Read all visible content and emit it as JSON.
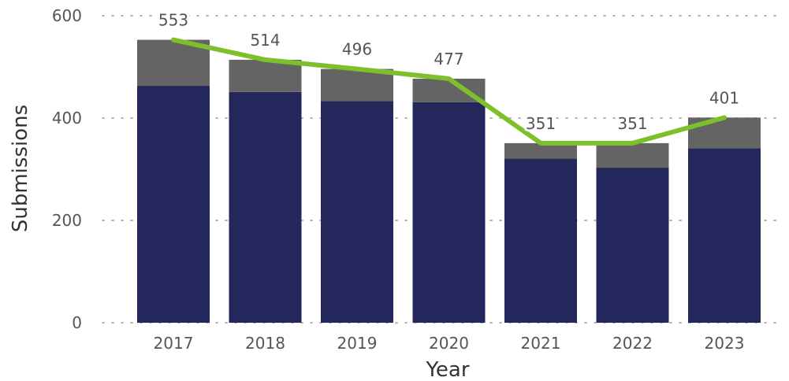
{
  "chart_data": {
    "type": "bar",
    "categories": [
      "2017",
      "2018",
      "2019",
      "2020",
      "2021",
      "2022",
      "2023"
    ],
    "series": [
      {
        "values": [
          463,
          451,
          433,
          431,
          321,
          303,
          341
        ],
        "color": "#24275b"
      },
      {
        "values": [
          90,
          63,
          63,
          46,
          30,
          48,
          60
        ],
        "color": "#646464"
      }
    ],
    "line": {
      "type": "line",
      "values": [
        553,
        514,
        496,
        477,
        351,
        351,
        401
      ],
      "labels": [
        "553",
        "514",
        "496",
        "477",
        "351",
        "351",
        "401"
      ],
      "color": "#7dc02c"
    },
    "stacked": true,
    "xlabel": "Year",
    "ylabel": "Submissions",
    "ylim": [
      0,
      600
    ],
    "yticks": [
      "0",
      "200",
      "400",
      "600"
    ],
    "grid": true
  }
}
